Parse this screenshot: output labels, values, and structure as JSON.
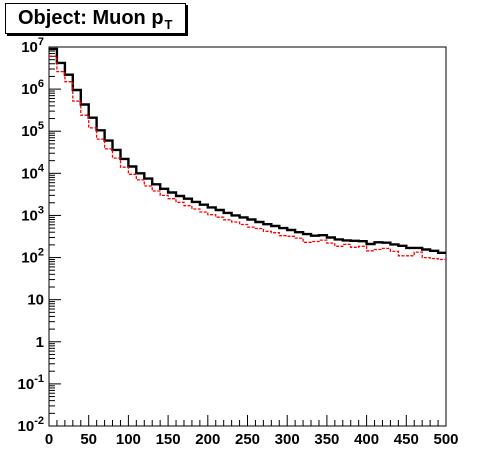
{
  "title": {
    "main": "Object: Muon p",
    "sub": "T"
  },
  "chart_data": {
    "type": "histogram",
    "title": "Object: Muon pT",
    "xlabel": "",
    "ylabel": "",
    "xlim": [
      0,
      500
    ],
    "ylim": [
      0.01,
      10000000
    ],
    "yscale": "log",
    "bin_width": 10,
    "grid": false,
    "x_ticks": [
      "0",
      "50",
      "100",
      "150",
      "200",
      "250",
      "300",
      "350",
      "400",
      "450",
      "500"
    ],
    "y_ticks": [
      {
        "value": 0.01,
        "base": "10",
        "exp": "-2"
      },
      {
        "value": 0.1,
        "base": "10",
        "exp": "-1"
      },
      {
        "value": 1,
        "base": "1",
        "exp": ""
      },
      {
        "value": 10,
        "base": "10",
        "exp": ""
      },
      {
        "value": 100,
        "base": "10",
        "exp": "2"
      },
      {
        "value": 1000,
        "base": "10",
        "exp": "3"
      },
      {
        "value": 10000,
        "base": "10",
        "exp": "4"
      },
      {
        "value": 100000,
        "base": "10",
        "exp": "5"
      },
      {
        "value": 1000000,
        "base": "10",
        "exp": "6"
      },
      {
        "value": 10000000,
        "base": "10",
        "exp": "7"
      }
    ],
    "bin_edges_start": 0,
    "series": [
      {
        "color": "#000000",
        "style": "solid",
        "values": [
          9000000,
          4200000,
          2200000,
          950000,
          430000,
          210000,
          105000,
          60000,
          36000,
          22000,
          14500,
          10000,
          7500,
          5500,
          4300,
          3500,
          2900,
          2500,
          2100,
          1800,
          1550,
          1350,
          1150,
          1000,
          900,
          800,
          700,
          620,
          560,
          500,
          450,
          400,
          360,
          330,
          340,
          300,
          270,
          255,
          250,
          245,
          210,
          230,
          225,
          205,
          190,
          170,
          170,
          155,
          145,
          130
        ]
      },
      {
        "color": "#ff0000",
        "style": "dashed",
        "values": [
          6000000,
          2600000,
          1500000,
          520000,
          240000,
          120000,
          65000,
          38000,
          23000,
          14000,
          9500,
          7000,
          5000,
          3800,
          3000,
          2500,
          2050,
          1700,
          1420,
          1210,
          1040,
          910,
          790,
          700,
          610,
          530,
          490,
          420,
          390,
          330,
          320,
          290,
          230,
          240,
          260,
          220,
          185,
          205,
          175,
          185,
          145,
          155,
          165,
          140,
          110,
          110,
          135,
          100,
          95,
          90
        ]
      }
    ]
  }
}
